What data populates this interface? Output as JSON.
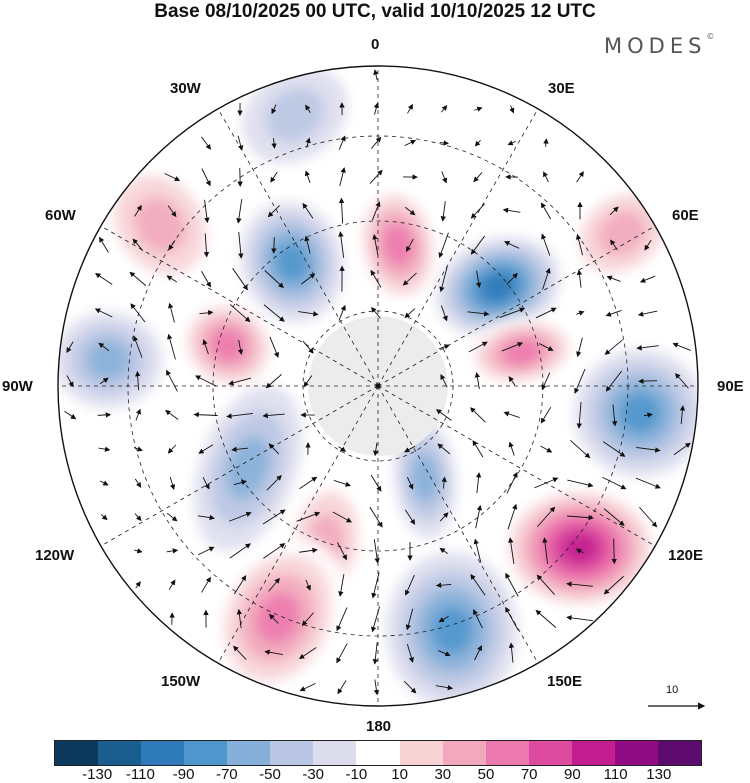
{
  "header": {
    "title": "Base 08/10/2025 00 UTC, valid 10/10/2025 12 UTC",
    "brand": "MODES",
    "brand_mark": "©"
  },
  "map": {
    "projection": "south-polar-stereographic",
    "field": "anomaly with wind vectors",
    "longitude_labels": {
      "lon_0": "0",
      "lon_30e": "30E",
      "lon_60e": "60E",
      "lon_90e": "90E",
      "lon_120e": "120E",
      "lon_150e": "150E",
      "lon_180": "180",
      "lon_150w": "150W",
      "lon_120w": "120W",
      "lon_90w": "90W",
      "lon_60w": "60W",
      "lon_30w": "30W"
    },
    "reference_vector_label": "10"
  },
  "colorbar": {
    "ticks": [
      "-130",
      "-110",
      "-90",
      "-70",
      "-50",
      "-30",
      "-10",
      "10",
      "30",
      "50",
      "70",
      "90",
      "110",
      "130"
    ],
    "colors": [
      "#0b3a5e",
      "#1a5d8f",
      "#2f7ab8",
      "#4e96cc",
      "#86b0d9",
      "#bac6e3",
      "#dcdced",
      "#ffffff",
      "#f7d3d6",
      "#f2a9bd",
      "#ec79ad",
      "#dd4ba0",
      "#c21e90",
      "#900c83",
      "#5e0b6f"
    ]
  }
}
